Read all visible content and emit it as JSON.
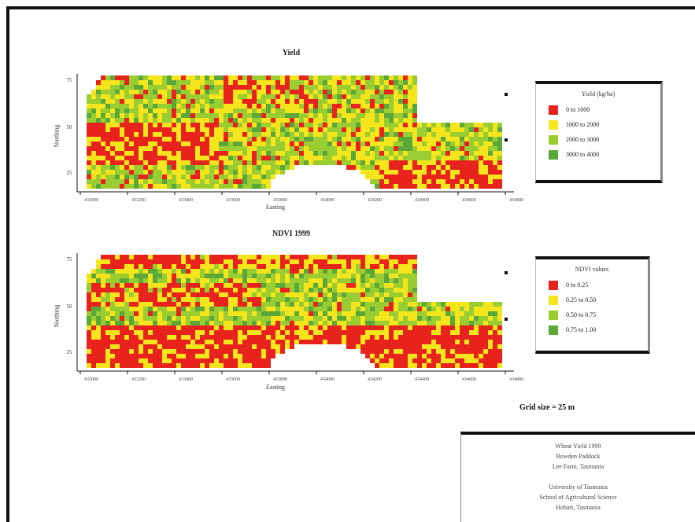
{
  "colors": {
    "red": "#e8231e",
    "yellow": "#f5e51c",
    "light_green": "#9acd32",
    "green": "#5aa83a",
    "frame": "#111111"
  },
  "maps": [
    {
      "id": "map-top",
      "title": "Yield",
      "xlabel": "Easting",
      "ylabel": "Northing",
      "x_ticks": [
        "433000",
        "433200",
        "433400",
        "433600",
        "433800",
        "434000",
        "434200",
        "434400",
        "434600",
        "434800"
      ],
      "y_ticks": [
        "75",
        "50",
        "25"
      ],
      "legend": {
        "title": "Yield (kg/ha)",
        "items": [
          {
            "label": "0 to 1000",
            "color": "#e8231e"
          },
          {
            "label": "1000 to 2000",
            "color": "#f5e51c"
          },
          {
            "label": "2000 to 3000",
            "color": "#9acd32"
          },
          {
            "label": "3000 to 4000",
            "color": "#5aa83a"
          }
        ]
      }
    },
    {
      "id": "map-bottom",
      "title": "NDVI 1999",
      "xlabel": "Easting",
      "ylabel": "Northing",
      "x_ticks": [
        "433000",
        "433200",
        "433400",
        "433600",
        "433800",
        "434000",
        "434200",
        "434400",
        "434600",
        "434800"
      ],
      "y_ticks": [
        "75",
        "50",
        "25"
      ],
      "legend": {
        "title": "NDVI values",
        "items": [
          {
            "label": "0 to 0.25",
            "color": "#e8231e"
          },
          {
            "label": "0.25 to 0.50",
            "color": "#f5e51c"
          },
          {
            "label": "0.50 to 0.75",
            "color": "#9acd32"
          },
          {
            "label": "0.75 to 1.00",
            "color": "#5aa83a"
          }
        ]
      }
    }
  ],
  "scale": {
    "text": "Grid size = 25 m"
  },
  "info_box": {
    "lines": [
      "Wheat Yield 1999",
      "Bowden Paddock",
      "Lee Farm, Tasmania",
      "",
      "University of Tasmania",
      "School of Agricultural Science",
      "Hobart, Tasmania"
    ]
  }
}
